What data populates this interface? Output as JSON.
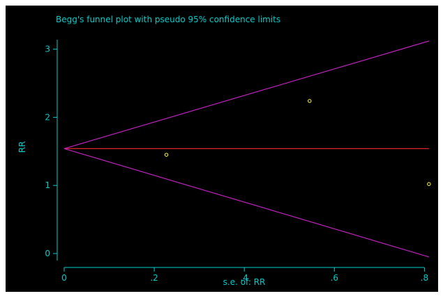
{
  "chart_data": {
    "type": "scatter",
    "title": "Begg's funnel plot with pseudo 95% confidence limits",
    "xlabel": "s.e. of: RR",
    "ylabel": "RR",
    "xlim": [
      0,
      0.82
    ],
    "ylim": [
      -0.05,
      3.12
    ],
    "x_ticks": [
      0,
      0.2,
      0.4,
      0.6,
      0.8
    ],
    "x_tick_labels": [
      "0",
      ".2",
      ".4",
      ".6",
      ".8"
    ],
    "y_ticks": [
      0,
      1,
      2,
      3
    ],
    "y_tick_labels": [
      "0",
      "1",
      "2",
      "3"
    ],
    "grid": false,
    "pooled_estimate": 1.54,
    "lines": [
      {
        "role": "pooled estimate",
        "color": "#e0202a",
        "x": [
          0,
          0.81
        ],
        "y": [
          1.54,
          1.54
        ]
      },
      {
        "role": "upper pseudo 95% limit",
        "color": "#c020c0",
        "x": [
          0,
          0.81
        ],
        "y": [
          1.54,
          3.12
        ]
      },
      {
        "role": "lower pseudo 95% limit",
        "color": "#c020c0",
        "x": [
          0,
          0.81
        ],
        "y": [
          1.54,
          -0.05
        ]
      }
    ],
    "points": [
      {
        "x": 0.227,
        "y": 1.45
      },
      {
        "x": 0.545,
        "y": 2.24
      },
      {
        "x": 0.81,
        "y": 1.02
      }
    ],
    "colors": {
      "background": "#000000",
      "axes": "#00cccc",
      "text": "#00cccc",
      "points": "#ffff33"
    }
  }
}
